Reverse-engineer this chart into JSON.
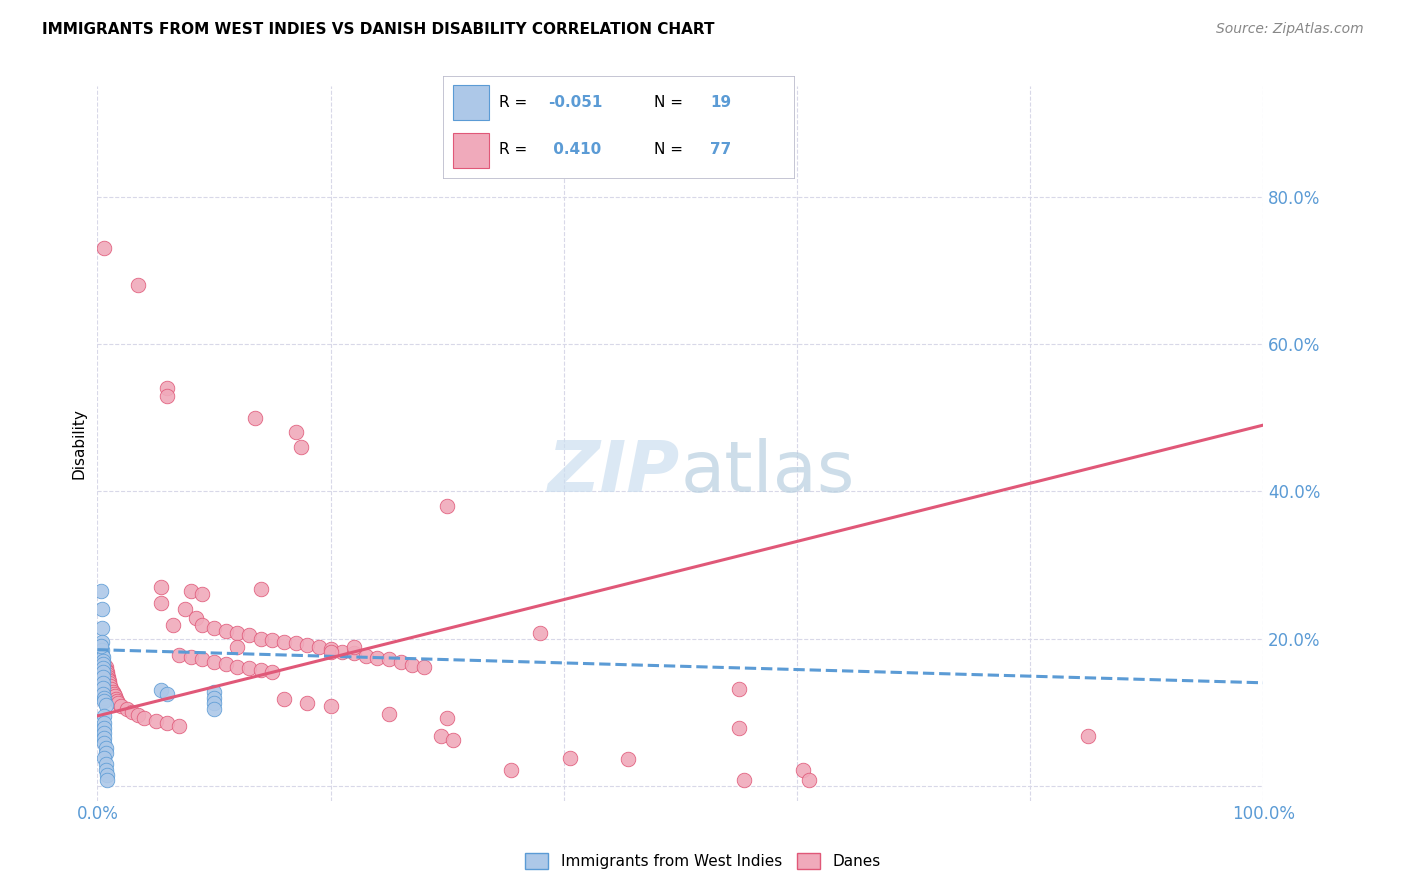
{
  "title": "IMMIGRANTS FROM WEST INDIES VS DANISH DISABILITY CORRELATION CHART",
  "source": "Source: ZipAtlas.com",
  "ylabel": "Disability",
  "xlim": [
    0.0,
    1.0
  ],
  "ylim": [
    -0.02,
    0.95
  ],
  "ytick_positions": [
    0.0,
    0.2,
    0.4,
    0.6,
    0.8
  ],
  "yticklabels_right": [
    "",
    "20.0%",
    "40.0%",
    "60.0%",
    "80.0%"
  ],
  "legend_entries": [
    "Immigrants from West Indies",
    "Danes"
  ],
  "blue_color": "#adc8e8",
  "pink_color": "#f0aabb",
  "blue_line_color": "#5b9bd5",
  "pink_line_color": "#e05878",
  "background_color": "#ffffff",
  "grid_color": "#d8d8e8",
  "blue_scatter": [
    [
      0.003,
      0.265
    ],
    [
      0.004,
      0.24
    ],
    [
      0.004,
      0.215
    ],
    [
      0.004,
      0.195
    ],
    [
      0.004,
      0.185
    ],
    [
      0.004,
      0.178
    ],
    [
      0.005,
      0.175
    ],
    [
      0.005,
      0.17
    ],
    [
      0.005,
      0.165
    ],
    [
      0.005,
      0.16
    ],
    [
      0.005,
      0.155
    ],
    [
      0.005,
      0.148
    ],
    [
      0.005,
      0.14
    ],
    [
      0.005,
      0.133
    ],
    [
      0.005,
      0.125
    ],
    [
      0.006,
      0.12
    ],
    [
      0.006,
      0.115
    ],
    [
      0.007,
      0.11
    ],
    [
      0.006,
      0.095
    ],
    [
      0.006,
      0.085
    ],
    [
      0.006,
      0.078
    ],
    [
      0.006,
      0.072
    ],
    [
      0.006,
      0.065
    ],
    [
      0.006,
      0.058
    ],
    [
      0.007,
      0.052
    ],
    [
      0.007,
      0.045
    ],
    [
      0.006,
      0.038
    ],
    [
      0.007,
      0.03
    ],
    [
      0.007,
      0.022
    ],
    [
      0.008,
      0.015
    ],
    [
      0.008,
      0.008
    ],
    [
      0.055,
      0.13
    ],
    [
      0.06,
      0.125
    ],
    [
      0.1,
      0.128
    ],
    [
      0.1,
      0.12
    ],
    [
      0.1,
      0.112
    ],
    [
      0.1,
      0.105
    ],
    [
      0.003,
      0.19
    ]
  ],
  "pink_scatter": [
    [
      0.006,
      0.73
    ],
    [
      0.035,
      0.68
    ],
    [
      0.06,
      0.54
    ],
    [
      0.06,
      0.53
    ],
    [
      0.135,
      0.5
    ],
    [
      0.17,
      0.48
    ],
    [
      0.175,
      0.46
    ],
    [
      0.3,
      0.38
    ],
    [
      0.055,
      0.27
    ],
    [
      0.08,
      0.265
    ],
    [
      0.09,
      0.26
    ],
    [
      0.075,
      0.24
    ],
    [
      0.085,
      0.228
    ],
    [
      0.09,
      0.218
    ],
    [
      0.1,
      0.215
    ],
    [
      0.11,
      0.21
    ],
    [
      0.12,
      0.208
    ],
    [
      0.13,
      0.205
    ],
    [
      0.14,
      0.2
    ],
    [
      0.15,
      0.198
    ],
    [
      0.16,
      0.196
    ],
    [
      0.17,
      0.194
    ],
    [
      0.18,
      0.192
    ],
    [
      0.19,
      0.188
    ],
    [
      0.2,
      0.186
    ],
    [
      0.21,
      0.182
    ],
    [
      0.22,
      0.18
    ],
    [
      0.23,
      0.177
    ],
    [
      0.24,
      0.174
    ],
    [
      0.25,
      0.172
    ],
    [
      0.26,
      0.168
    ],
    [
      0.27,
      0.164
    ],
    [
      0.28,
      0.162
    ],
    [
      0.07,
      0.178
    ],
    [
      0.08,
      0.175
    ],
    [
      0.09,
      0.172
    ],
    [
      0.1,
      0.168
    ],
    [
      0.11,
      0.165
    ],
    [
      0.12,
      0.162
    ],
    [
      0.13,
      0.16
    ],
    [
      0.14,
      0.158
    ],
    [
      0.15,
      0.155
    ],
    [
      0.005,
      0.168
    ],
    [
      0.006,
      0.164
    ],
    [
      0.007,
      0.162
    ],
    [
      0.007,
      0.158
    ],
    [
      0.008,
      0.155
    ],
    [
      0.008,
      0.152
    ],
    [
      0.009,
      0.148
    ],
    [
      0.009,
      0.145
    ],
    [
      0.01,
      0.142
    ],
    [
      0.01,
      0.14
    ],
    [
      0.011,
      0.136
    ],
    [
      0.012,
      0.132
    ],
    [
      0.013,
      0.128
    ],
    [
      0.014,
      0.125
    ],
    [
      0.015,
      0.122
    ],
    [
      0.016,
      0.118
    ],
    [
      0.017,
      0.115
    ],
    [
      0.018,
      0.112
    ],
    [
      0.02,
      0.108
    ],
    [
      0.025,
      0.104
    ],
    [
      0.03,
      0.1
    ],
    [
      0.035,
      0.096
    ],
    [
      0.04,
      0.092
    ],
    [
      0.05,
      0.088
    ],
    [
      0.06,
      0.085
    ],
    [
      0.07,
      0.082
    ],
    [
      0.16,
      0.118
    ],
    [
      0.18,
      0.112
    ],
    [
      0.2,
      0.108
    ],
    [
      0.25,
      0.098
    ],
    [
      0.3,
      0.092
    ],
    [
      0.55,
      0.132
    ],
    [
      0.55,
      0.078
    ],
    [
      0.85,
      0.068
    ],
    [
      0.295,
      0.068
    ],
    [
      0.305,
      0.062
    ],
    [
      0.355,
      0.022
    ],
    [
      0.405,
      0.038
    ],
    [
      0.455,
      0.036
    ],
    [
      0.555,
      0.008
    ],
    [
      0.605,
      0.022
    ],
    [
      0.61,
      0.008
    ],
    [
      0.38,
      0.208
    ],
    [
      0.12,
      0.188
    ],
    [
      0.14,
      0.268
    ],
    [
      0.2,
      0.182
    ],
    [
      0.22,
      0.188
    ],
    [
      0.055,
      0.248
    ],
    [
      0.065,
      0.218
    ]
  ],
  "blue_line_x": [
    0.0,
    1.0
  ],
  "blue_line_y": [
    0.185,
    0.14
  ],
  "pink_line_x": [
    0.0,
    1.0
  ],
  "pink_line_y": [
    0.095,
    0.49
  ]
}
